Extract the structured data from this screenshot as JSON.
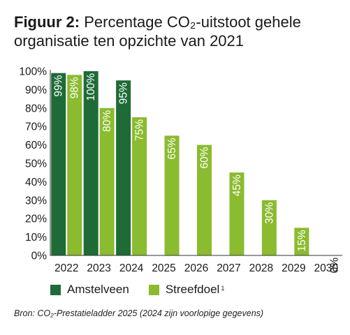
{
  "title": {
    "bold": "Figuur 2:",
    "text": "Percentage CO₂-uitstoot gehele organisatie ten opzichte van 2021"
  },
  "chart_data": {
    "type": "bar",
    "categories": [
      "2022",
      "2023",
      "2024",
      "2025",
      "2026",
      "2027",
      "2028",
      "2029",
      "2030"
    ],
    "series": [
      {
        "name": "Amstelveen",
        "color": "#1e6b37",
        "values": [
          99,
          100,
          95,
          null,
          null,
          null,
          null,
          null,
          null
        ]
      },
      {
        "name": "Streefdoel",
        "color": "#8bbb2f",
        "values": [
          98,
          80,
          75,
          65,
          60,
          45,
          30,
          15,
          0
        ]
      }
    ],
    "data_labels": {
      "Amstelveen": [
        "99%",
        "100%",
        "95%"
      ],
      "Streefdoel": [
        "98%",
        "80%",
        "75%",
        "65%",
        "60%",
        "45%",
        "30%",
        "15%",
        "0%"
      ]
    },
    "y_ticks": [
      "0%",
      "10%",
      "20%",
      "30%",
      "40%",
      "50%",
      "60%",
      "70%",
      "80%",
      "90%",
      "100%"
    ],
    "ylim": [
      0,
      100
    ],
    "grid": false,
    "legend_placement": "bottom-left"
  },
  "legend": {
    "items": [
      {
        "label": "Amstelveen",
        "sup": "",
        "color": "#1e6b37"
      },
      {
        "label": "Streefdoel",
        "sup": "1",
        "color": "#8bbb2f"
      }
    ]
  },
  "source": "Bron: CO₂-Prestatieladder 2025 (2024 zijn voorlopige gegevens)"
}
